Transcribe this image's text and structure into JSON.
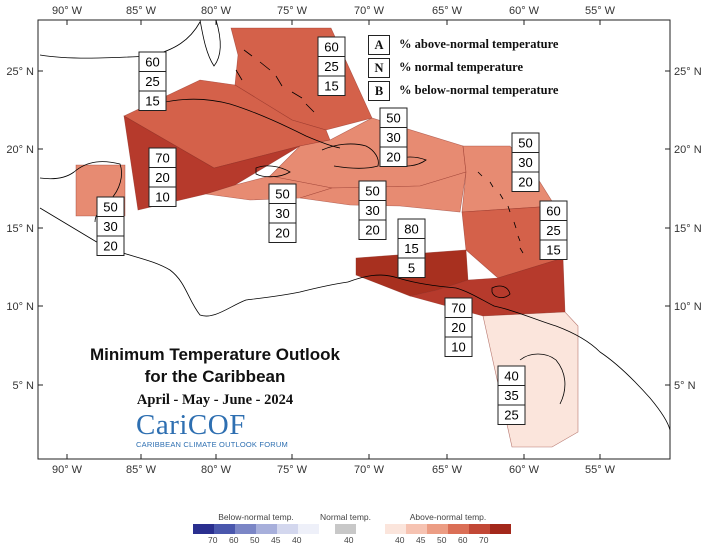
{
  "longitude_labels": [
    "90° W",
    "85° W",
    "80° W",
    "75° W",
    "70° W",
    "65° W",
    "60° W",
    "55° W"
  ],
  "latitude_labels": [
    "25° N",
    "20° N",
    "15° N",
    "10° N",
    "5° N"
  ],
  "key": [
    {
      "letter": "A",
      "text": "% above-normal temperature"
    },
    {
      "letter": "N",
      "text": "% normal temperature"
    },
    {
      "letter": "B",
      "text": "% below-normal temperature"
    }
  ],
  "title": {
    "line1": "Minimum Temperature Outlook",
    "line2": "for the Caribbean",
    "season": "April - May - June - 2024"
  },
  "logo": {
    "word": "CariCOF",
    "subtitle": "CARIBBEAN CLIMATE OUTLOOK FORUM"
  },
  "regions": [
    {
      "id": "bahamas",
      "values": [
        "60",
        "25",
        "15"
      ],
      "color": "#d4614a"
    },
    {
      "id": "cuba-nw",
      "values": [
        "60",
        "25",
        "15"
      ],
      "color": "#d4614a"
    },
    {
      "id": "cayman-jamaica",
      "values": [
        "70",
        "20",
        "10"
      ],
      "color": "#b63a2c"
    },
    {
      "id": "belize",
      "values": [
        "50",
        "30",
        "20"
      ],
      "color": "#e78b72"
    },
    {
      "id": "hispaniola",
      "values": [
        "50",
        "30",
        "20"
      ],
      "color": "#e78b72"
    },
    {
      "id": "jamaica-south",
      "values": [
        "50",
        "30",
        "20"
      ],
      "color": "#e78b72"
    },
    {
      "id": "caribbean-sea",
      "values": [
        "50",
        "30",
        "20"
      ],
      "color": "#e78b72"
    },
    {
      "id": "lesser-antilles-north",
      "values": [
        "50",
        "30",
        "20"
      ],
      "color": "#e78b72"
    },
    {
      "id": "lesser-antilles-south",
      "values": [
        "60",
        "25",
        "15"
      ],
      "color": "#d4614a"
    },
    {
      "id": "abc-islands",
      "values": [
        "80",
        "15",
        "5"
      ],
      "color": "#a8301f"
    },
    {
      "id": "trinidad",
      "values": [
        "70",
        "20",
        "10"
      ],
      "color": "#b63a2c"
    },
    {
      "id": "guianas",
      "values": [
        "40",
        "35",
        "25"
      ],
      "color": "#fbe5dc"
    }
  ],
  "colorbar": {
    "below": {
      "caption": "Below-normal temp.",
      "ticks": [
        "70",
        "60",
        "50",
        "45",
        "40"
      ],
      "colors": [
        "#2a2f8f",
        "#4a57ad",
        "#7b86c6",
        "#a7afdb",
        "#d3d7ee",
        "#eef0f9"
      ]
    },
    "normal": {
      "caption": "Normal temp.",
      "ticks": [
        "40"
      ],
      "colors": [
        "#c8c8c8"
      ]
    },
    "above": {
      "caption": "Above-normal temp.",
      "ticks": [
        "40",
        "45",
        "50",
        "60",
        "70"
      ],
      "colors": [
        "#fbe5dc",
        "#f6c3b2",
        "#ec9d84",
        "#db6f56",
        "#c24836",
        "#a3281b"
      ]
    }
  }
}
